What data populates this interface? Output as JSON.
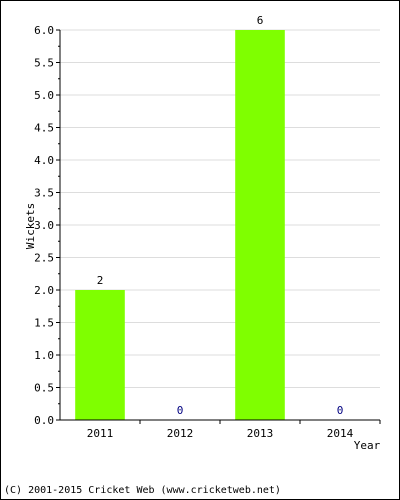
{
  "chart_data": {
    "type": "bar",
    "categories": [
      "2011",
      "2012",
      "2013",
      "2014"
    ],
    "values": [
      2,
      0,
      6,
      0
    ],
    "data_labels": [
      "2",
      "0",
      "6",
      "0"
    ],
    "title": "",
    "xlabel": "Year",
    "ylabel": "Wickets",
    "ylim": [
      0,
      6.0
    ],
    "yticks": [
      "0.0",
      "0.5",
      "1.0",
      "1.5",
      "2.0",
      "2.5",
      "3.0",
      "3.5",
      "4.0",
      "4.5",
      "5.0",
      "5.5",
      "6.0"
    ],
    "grid": true,
    "bar_color": "#7fff00",
    "label_color": "#000080"
  },
  "footer": {
    "text": "(C) 2001-2015 Cricket Web (www.cricketweb.net)"
  }
}
